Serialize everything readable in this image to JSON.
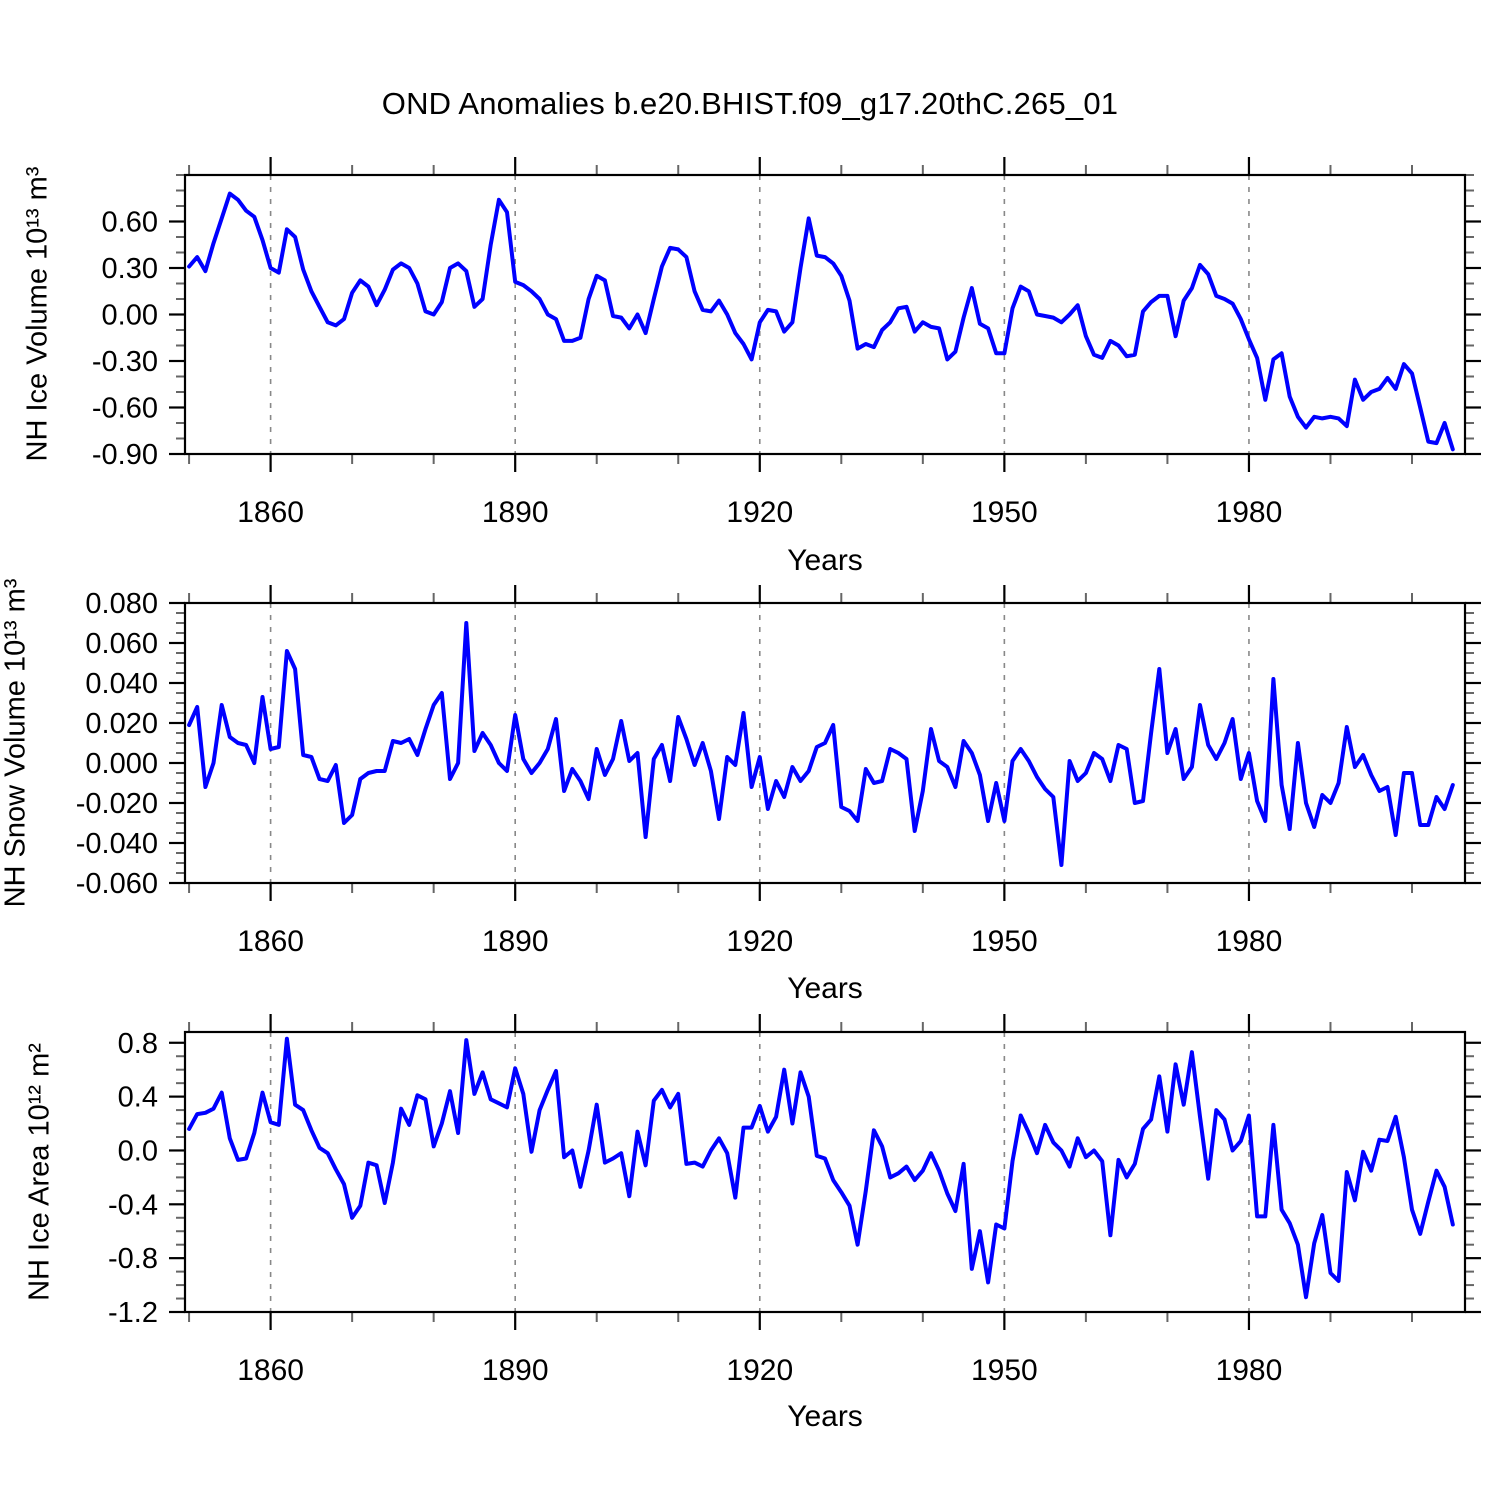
{
  "title": "OND Anomalies b.e20.BHIST.f09_g17.20thC.265_01",
  "x_axis": {
    "label": "Years",
    "range": [
      1849.5,
      2006.5
    ],
    "major_ticks": [
      1860,
      1890,
      1920,
      1950,
      1980
    ],
    "major_tick_labels": [
      "1860",
      "1890",
      "1920",
      "1950",
      "1980"
    ],
    "minor_tick_interval": 10,
    "gridlines": "vertical-dashed"
  },
  "style": {
    "line_color": "#0000ff",
    "frame_color": "#000000",
    "gridline_color": "#888888",
    "minor_tick_color": "#666666",
    "background": "#ffffff"
  },
  "chart_data": [
    {
      "type": "line",
      "name": "ice-volume",
      "ylabel": "NH Ice Volume 10¹³ m³",
      "xlabel": "Years",
      "ylim": [
        -0.9,
        0.9
      ],
      "ytick_values": [
        0.6,
        0.3,
        0.0,
        -0.3,
        -0.6,
        -0.9
      ],
      "ytick_labels": [
        "0.60",
        "0.30",
        "0.00",
        "-0.30",
        "-0.60",
        "-0.90"
      ],
      "yminor_step": 0.1,
      "x": {
        "start": 1850,
        "end": 2005,
        "step": 1
      },
      "values": [
        0.31,
        0.37,
        0.28,
        0.46,
        0.62,
        0.78,
        0.74,
        0.67,
        0.63,
        0.48,
        0.3,
        0.27,
        0.55,
        0.5,
        0.29,
        0.15,
        0.05,
        -0.05,
        -0.07,
        -0.03,
        0.14,
        0.22,
        0.18,
        0.06,
        0.16,
        0.29,
        0.33,
        0.3,
        0.2,
        0.02,
        0.0,
        0.08,
        0.3,
        0.33,
        0.28,
        0.05,
        0.1,
        0.45,
        0.74,
        0.66,
        0.21,
        0.19,
        0.15,
        0.1,
        0.0,
        -0.03,
        -0.17,
        -0.17,
        -0.15,
        0.1,
        0.25,
        0.22,
        -0.01,
        -0.02,
        -0.09,
        0.0,
        -0.12,
        0.1,
        0.31,
        0.43,
        0.42,
        0.37,
        0.15,
        0.03,
        0.02,
        0.09,
        0.0,
        -0.12,
        -0.19,
        -0.29,
        -0.05,
        0.03,
        0.02,
        -0.11,
        -0.05,
        0.3,
        0.62,
        0.38,
        0.37,
        0.33,
        0.25,
        0.09,
        -0.22,
        -0.19,
        -0.21,
        -0.1,
        -0.05,
        0.04,
        0.05,
        -0.11,
        -0.05,
        -0.08,
        -0.09,
        -0.29,
        -0.24,
        -0.02,
        0.17,
        -0.06,
        -0.09,
        -0.25,
        -0.25,
        0.04,
        0.18,
        0.15,
        0.0,
        -0.01,
        -0.02,
        -0.05,
        0.0,
        0.06,
        -0.14,
        -0.26,
        -0.28,
        -0.17,
        -0.2,
        -0.27,
        -0.26,
        0.02,
        0.08,
        0.12,
        0.12,
        -0.14,
        0.09,
        0.17,
        0.32,
        0.26,
        0.12,
        0.1,
        0.07,
        -0.03,
        -0.16,
        -0.28,
        -0.55,
        -0.29,
        -0.25,
        -0.53,
        -0.66,
        -0.73,
        -0.66,
        -0.67,
        -0.66,
        -0.67,
        -0.72,
        -0.42,
        -0.55,
        -0.5,
        -0.48,
        -0.41,
        -0.48,
        -0.32,
        -0.38,
        -0.6,
        -0.82,
        -0.83,
        -0.7,
        -0.87
      ]
    },
    {
      "type": "line",
      "name": "snow-volume",
      "ylabel": "NH Snow Volume 10¹³ m³",
      "xlabel": "Years",
      "ylim": [
        -0.06,
        0.08
      ],
      "ytick_values": [
        0.08,
        0.06,
        0.04,
        0.02,
        0.0,
        -0.02,
        -0.04,
        -0.06
      ],
      "ytick_labels": [
        "0.080",
        "0.060",
        "0.040",
        "0.020",
        "0.000",
        "-0.020",
        "-0.040",
        "-0.060"
      ],
      "yminor_step": 0.005,
      "x": {
        "start": 1850,
        "end": 2005,
        "step": 1
      },
      "values": [
        0.019,
        0.028,
        -0.012,
        0.0,
        0.029,
        0.013,
        0.01,
        0.009,
        0.0,
        0.033,
        0.007,
        0.008,
        0.056,
        0.047,
        0.004,
        0.003,
        -0.008,
        -0.009,
        -0.001,
        -0.03,
        -0.026,
        -0.008,
        -0.005,
        -0.004,
        -0.004,
        0.011,
        0.01,
        0.012,
        0.004,
        0.017,
        0.029,
        0.035,
        -0.008,
        0.0,
        0.07,
        0.006,
        0.015,
        0.009,
        0.0,
        -0.004,
        0.024,
        0.002,
        -0.005,
        0.0,
        0.007,
        0.022,
        -0.014,
        -0.003,
        -0.009,
        -0.018,
        0.007,
        -0.006,
        0.002,
        0.021,
        0.001,
        0.005,
        -0.037,
        0.002,
        0.009,
        -0.009,
        0.023,
        0.012,
        -0.001,
        0.01,
        -0.004,
        -0.028,
        0.003,
        -0.001,
        0.025,
        -0.012,
        0.003,
        -0.023,
        -0.009,
        -0.017,
        -0.002,
        -0.009,
        -0.004,
        0.008,
        0.01,
        0.019,
        -0.022,
        -0.024,
        -0.029,
        -0.003,
        -0.01,
        -0.009,
        0.007,
        0.005,
        0.002,
        -0.034,
        -0.014,
        0.017,
        0.001,
        -0.002,
        -0.012,
        0.011,
        0.005,
        -0.006,
        -0.029,
        -0.01,
        -0.029,
        0.001,
        0.007,
        0.001,
        -0.007,
        -0.013,
        -0.017,
        -0.051,
        0.001,
        -0.009,
        -0.005,
        0.005,
        0.002,
        -0.009,
        0.009,
        0.007,
        -0.02,
        -0.019,
        0.015,
        0.047,
        0.005,
        0.017,
        -0.008,
        -0.002,
        0.029,
        0.009,
        0.002,
        0.01,
        0.022,
        -0.008,
        0.005,
        -0.019,
        -0.029,
        0.042,
        -0.011,
        -0.033,
        0.01,
        -0.02,
        -0.032,
        -0.016,
        -0.02,
        -0.01,
        0.018,
        -0.002,
        0.004,
        -0.006,
        -0.014,
        -0.012,
        -0.036,
        -0.005,
        -0.005,
        -0.031,
        -0.031,
        -0.017,
        -0.023,
        -0.011
      ]
    },
    {
      "type": "line",
      "name": "ice-area",
      "ylabel": "NH Ice Area 10¹² m²",
      "xlabel": "Years",
      "ylim": [
        -1.2,
        0.88
      ],
      "ytick_values": [
        0.8,
        0.4,
        0.0,
        -0.4,
        -0.8,
        -1.2
      ],
      "ytick_labels": [
        "0.8",
        "0.4",
        "0.0",
        "-0.4",
        "-0.8",
        "-1.2"
      ],
      "yminor_step": 0.1,
      "x": {
        "start": 1850,
        "end": 2005,
        "step": 1
      },
      "values": [
        0.16,
        0.27,
        0.28,
        0.31,
        0.43,
        0.09,
        -0.07,
        -0.06,
        0.13,
        0.43,
        0.21,
        0.19,
        0.83,
        0.34,
        0.3,
        0.15,
        0.02,
        -0.02,
        -0.14,
        -0.25,
        -0.5,
        -0.41,
        -0.09,
        -0.11,
        -0.39,
        -0.09,
        0.31,
        0.19,
        0.41,
        0.38,
        0.03,
        0.2,
        0.44,
        0.13,
        0.82,
        0.42,
        0.58,
        0.38,
        0.35,
        0.32,
        0.61,
        0.42,
        -0.01,
        0.3,
        0.45,
        0.59,
        -0.05,
        0.0,
        -0.27,
        0.0,
        0.34,
        -0.09,
        -0.06,
        -0.02,
        -0.34,
        0.14,
        -0.11,
        0.37,
        0.45,
        0.32,
        0.42,
        -0.1,
        -0.09,
        -0.12,
        0.0,
        0.09,
        -0.02,
        -0.35,
        0.17,
        0.17,
        0.33,
        0.14,
        0.25,
        0.6,
        0.2,
        0.58,
        0.4,
        -0.04,
        -0.06,
        -0.22,
        -0.31,
        -0.41,
        -0.7,
        -0.3,
        0.15,
        0.03,
        -0.2,
        -0.17,
        -0.12,
        -0.22,
        -0.15,
        -0.02,
        -0.15,
        -0.32,
        -0.45,
        -0.1,
        -0.88,
        -0.6,
        -0.98,
        -0.55,
        -0.58,
        -0.08,
        0.26,
        0.13,
        -0.02,
        0.19,
        0.06,
        0.0,
        -0.12,
        0.09,
        -0.05,
        0.0,
        -0.08,
        -0.63,
        -0.07,
        -0.2,
        -0.1,
        0.16,
        0.23,
        0.55,
        0.14,
        0.64,
        0.34,
        0.73,
        0.25,
        -0.21,
        0.3,
        0.23,
        0.0,
        0.07,
        0.26,
        -0.49,
        -0.49,
        0.19,
        -0.44,
        -0.54,
        -0.7,
        -1.09,
        -0.69,
        -0.48,
        -0.91,
        -0.97,
        -0.16,
        -0.37,
        -0.01,
        -0.15,
        0.08,
        0.07,
        0.25,
        -0.05,
        -0.44,
        -0.62,
        -0.38,
        -0.15,
        -0.27,
        -0.55
      ]
    }
  ]
}
